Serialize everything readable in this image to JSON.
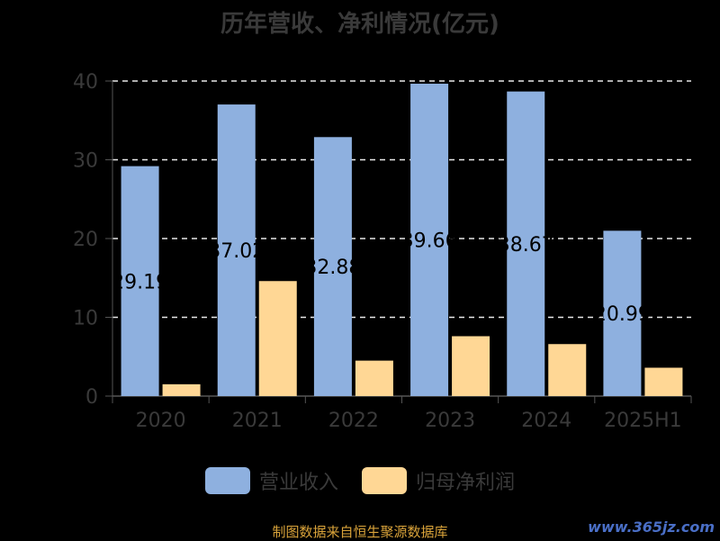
{
  "chart_data": {
    "type": "bar",
    "title": "历年营收、净利情况(亿元)",
    "categories": [
      "2020",
      "2021",
      "2022",
      "2023",
      "2024",
      "2025H1"
    ],
    "series": [
      {
        "name": "营业收入",
        "color": "#8eb0df",
        "values": [
          29.19,
          37.02,
          32.88,
          39.66,
          38.67,
          20.99
        ],
        "labels": [
          "29.19",
          "37.02",
          "32.88",
          "39.66",
          "38.67",
          "20.99"
        ]
      },
      {
        "name": "归母净利润",
        "color": "#ffd795",
        "values": [
          1.5,
          14.6,
          4.5,
          7.6,
          6.6,
          3.6
        ]
      }
    ],
    "y_ticks": [
      0,
      10,
      20,
      30,
      40
    ],
    "ylim": [
      0,
      40
    ],
    "grid": true,
    "legend_position": "bottom"
  },
  "footer": {
    "source": "制图数据来自恒生聚源数据库",
    "watermark": "www.365jz.com"
  }
}
